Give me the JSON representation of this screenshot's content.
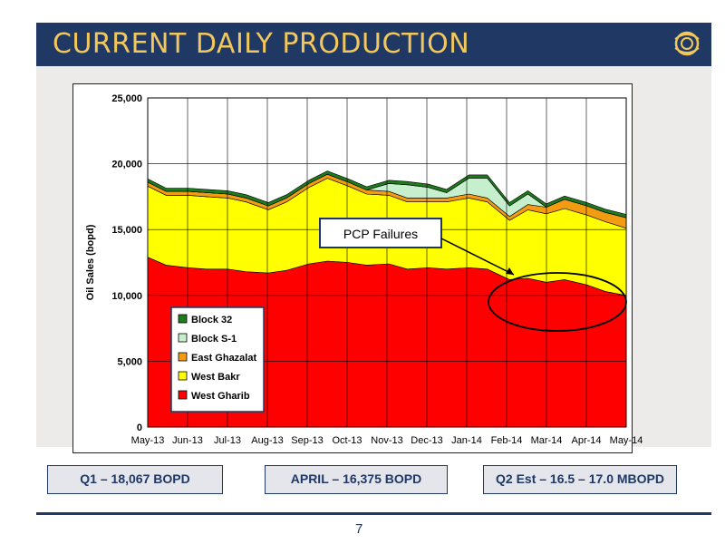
{
  "header": {
    "title": "CURRENT DAILY PRODUCTION"
  },
  "logo": {
    "icon": "company-logo-icon"
  },
  "colors": {
    "header_bg": "#1f3864",
    "header_text": "#f2c75c",
    "West Gharib": "#ff0000",
    "West Bakr": "#ffff00",
    "East Ghazalat": "#f39c12",
    "Block S-1": "#c6efce",
    "Block 32": "#1e7b1e"
  },
  "metrics": [
    {
      "label": "Q1 – 18,067 BOPD"
    },
    {
      "label": "APRIL – 16,375 BOPD"
    },
    {
      "label": "Q2 Est – 16.5 – 17.0 MBOPD"
    }
  ],
  "page_number": "7",
  "chart_data": {
    "type": "area",
    "stacked": true,
    "title": "",
    "xlabel": "",
    "ylabel": "Oil Sales (bopd)",
    "ylim": [
      0,
      25000
    ],
    "yticks": [
      0,
      5000,
      10000,
      15000,
      20000,
      25000
    ],
    "ytick_labels": [
      "0",
      "5,000",
      "10,000",
      "15,000",
      "20,000",
      "25,000"
    ],
    "x_tick_labels": [
      "May-13",
      "Jun-13",
      "Jul-13",
      "Aug-13",
      "Sep-13",
      "Oct-13",
      "Nov-13",
      "Dec-13",
      "Jan-14",
      "Feb-14",
      "Mar-14",
      "Apr-14",
      "May-14"
    ],
    "grid": true,
    "legend_position": "bottom-left",
    "annotation": {
      "text": "PCP Failures"
    },
    "x": [
      "2013-05-01",
      "2013-05-15",
      "2013-06-01",
      "2013-06-15",
      "2013-07-01",
      "2013-07-15",
      "2013-08-01",
      "2013-08-15",
      "2013-09-01",
      "2013-09-15",
      "2013-10-01",
      "2013-10-15",
      "2013-11-01",
      "2013-11-15",
      "2013-12-01",
      "2013-12-15",
      "2014-01-01",
      "2014-01-15",
      "2014-02-01",
      "2014-02-15",
      "2014-03-01",
      "2014-03-15",
      "2014-04-01",
      "2014-04-15",
      "2014-05-01"
    ],
    "series": [
      {
        "name": "West Gharib",
        "values": [
          12900,
          12300,
          12100,
          12000,
          12000,
          11800,
          11700,
          11900,
          12400,
          12600,
          12500,
          12300,
          12400,
          12000,
          12100,
          12000,
          12100,
          12000,
          11200,
          11300,
          11000,
          11200,
          10800,
          10300,
          10000
        ]
      },
      {
        "name": "West Bakr",
        "values": [
          5400,
          5300,
          5500,
          5500,
          5400,
          5300,
          4800,
          5200,
          5800,
          6300,
          5800,
          5400,
          5200,
          5100,
          5000,
          5100,
          5300,
          5100,
          4500,
          5200,
          5200,
          5400,
          5300,
          5300,
          5100
        ]
      },
      {
        "name": "East Ghazalat",
        "values": [
          300,
          300,
          300,
          300,
          300,
          300,
          300,
          300,
          300,
          300,
          300,
          300,
          300,
          300,
          300,
          300,
          300,
          300,
          300,
          400,
          500,
          700,
          700,
          700,
          800
        ]
      },
      {
        "name": "Block S-1",
        "values": [
          0,
          0,
          0,
          0,
          0,
          0,
          0,
          0,
          0,
          0,
          0,
          0,
          600,
          1000,
          800,
          400,
          1200,
          1500,
          800,
          800,
          0,
          0,
          0,
          0,
          0
        ]
      },
      {
        "name": "Block 32",
        "values": [
          250,
          250,
          250,
          250,
          250,
          250,
          250,
          250,
          250,
          250,
          250,
          250,
          250,
          250,
          250,
          250,
          250,
          250,
          250,
          250,
          250,
          250,
          250,
          250,
          250
        ]
      }
    ]
  }
}
